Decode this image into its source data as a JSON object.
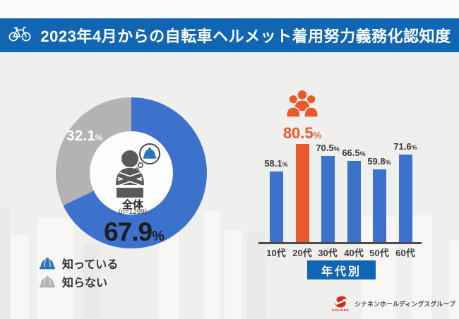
{
  "header": {
    "title": "2023年4月からの自転車ヘルメット着用努力義務化認知度"
  },
  "colors": {
    "banner": "#1066b2",
    "bar_blue": "#3c72cc",
    "gray": "#b3b3b3",
    "orange": "#ea5a28",
    "bg": "#efefee",
    "axis": "#4d4d4d",
    "person_gray": "#595959",
    "logo_red": "#d0281e"
  },
  "footer": {
    "logo_text": "SINANEN",
    "company": "シナネンホールディングスグループ"
  },
  "chart_data": [
    {
      "type": "pie",
      "donut": true,
      "group_label": "全体",
      "sample_label": "(n=1299)",
      "labels": [
        "知っている",
        "知らない"
      ],
      "values": [
        67.9,
        32.1
      ],
      "unit": "%",
      "colors": [
        "#3c72cc",
        "#b3b3b3"
      ],
      "legend_position": "bottom-left"
    },
    {
      "type": "bar",
      "caption": "年代別",
      "categories": [
        "10代",
        "20代",
        "30代",
        "40代",
        "50代",
        "60代"
      ],
      "values": [
        58.1,
        80.5,
        70.5,
        66.5,
        59.8,
        71.6
      ],
      "unit": "%",
      "highlight_index": 1,
      "bar_color": "#3c72cc",
      "highlight_color": "#ea5a28",
      "ylim": [
        0,
        100
      ],
      "grid": false
    }
  ]
}
